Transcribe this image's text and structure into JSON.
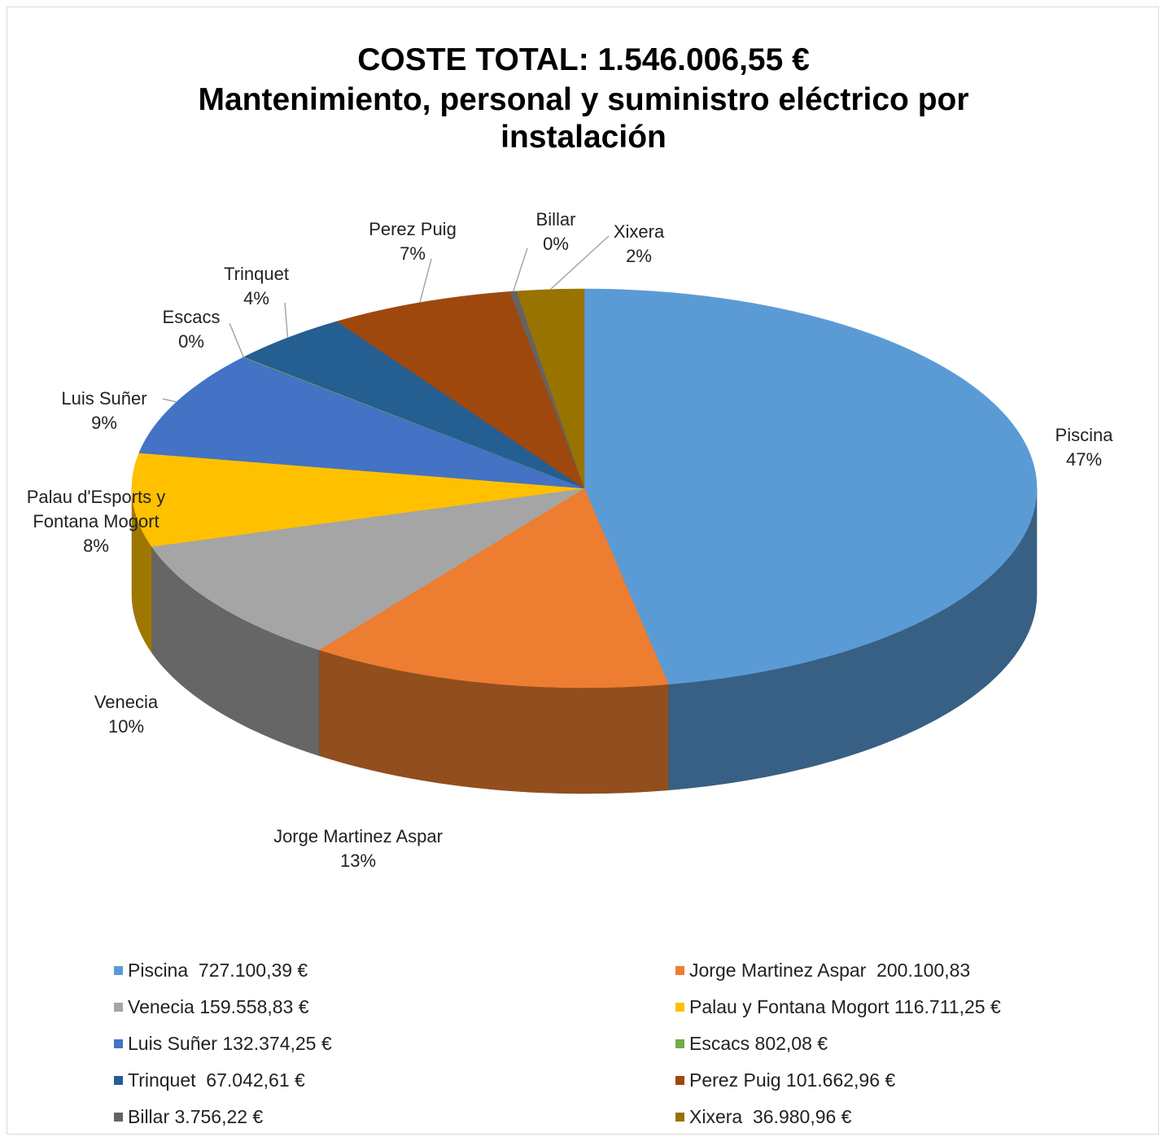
{
  "chart_data": {
    "type": "pie",
    "title": "COSTE TOTAL: 1.546.006,55 €",
    "subtitle": "Mantenimiento, personal y suministro eléctrico por instalación",
    "categories": [
      "Piscina",
      "Jorge Martinez Aspar",
      "Venecia",
      "Palau d'Esports y Fontana Mogort",
      "Luis Suñer",
      "Escacs",
      "Trinquet",
      "Perez Puig",
      "Billar",
      "Xixera"
    ],
    "values": [
      47.03,
      12.94,
      10.32,
      7.55,
      8.56,
      0.05,
      4.34,
      6.58,
      0.24,
      2.39
    ],
    "value_labels": [
      "47%",
      "13%",
      "10%",
      "8%",
      "9%",
      "0%",
      "4%",
      "7%",
      "0%",
      "2%"
    ],
    "colors": [
      "#5b9bd5",
      "#ed7d31",
      "#a5a5a5",
      "#ffc000",
      "#4472c4",
      "#70ad47",
      "#255e91",
      "#9e480e",
      "#636363",
      "#997300"
    ],
    "legend": [
      "Piscina  727.100,39 €",
      "Jorge Martinez Aspar  200.100,83",
      "Venecia 159.558,83 €",
      "Palau y Fontana Mogort 116.711,25 €",
      "Luis Suñer 132.374,25 €",
      "Escacs 802,08 €",
      "Trinquet  67.042,61 €",
      "Perez Puig 101.662,96 €",
      "Billar 3.756,22 €",
      "Xixera  36.980,96 €"
    ]
  }
}
